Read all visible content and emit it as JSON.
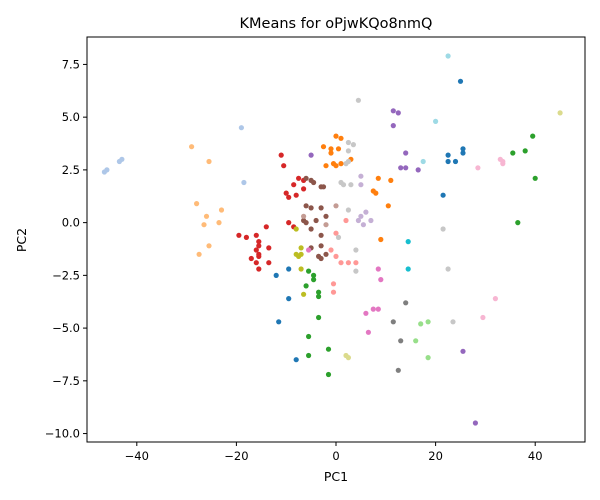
{
  "chart_data": {
    "type": "scatter",
    "title": "KMeans for oPjwKQo8nmQ",
    "xlabel": "PC1",
    "ylabel": "PC2",
    "xlim": [
      -50,
      50
    ],
    "ylim": [
      -10.4,
      8.8
    ],
    "xticks": [
      -40,
      -20,
      0,
      20,
      40
    ],
    "yticks": [
      -10.0,
      -7.5,
      -5.0,
      -2.5,
      0.0,
      2.5,
      5.0,
      7.5
    ],
    "xtick_labels": [
      "−40",
      "−20",
      "0",
      "20",
      "40"
    ],
    "ytick_labels": [
      "−10.0",
      "−7.5",
      "−5.0",
      "−2.5",
      "0.0",
      "2.5",
      "5.0",
      "7.5"
    ],
    "grid": false,
    "series": [
      {
        "color": "#1f77b4",
        "points": [
          [
            25.0,
            6.7
          ],
          [
            25.5,
            3.5
          ],
          [
            25.5,
            3.3
          ],
          [
            22.5,
            3.2
          ],
          [
            24.0,
            2.9
          ],
          [
            22.5,
            2.9
          ],
          [
            21.5,
            1.3
          ],
          [
            -12,
            -2.5
          ],
          [
            -9.5,
            -2.2
          ],
          [
            -9.5,
            -3.6
          ],
          [
            -11.5,
            -4.7
          ],
          [
            -8,
            -6.5
          ]
        ]
      },
      {
        "color": "#aec7e8",
        "points": [
          [
            -46.5,
            2.4
          ],
          [
            -46,
            2.5
          ],
          [
            -43.5,
            2.9
          ],
          [
            -43,
            3.0
          ],
          [
            -19,
            4.5
          ],
          [
            -18.5,
            1.9
          ]
        ]
      },
      {
        "color": "#ff7f0e",
        "points": [
          [
            0,
            4.1
          ],
          [
            1,
            4.0
          ],
          [
            -2.5,
            3.6
          ],
          [
            -1,
            3.5
          ],
          [
            -1,
            3.3
          ],
          [
            0.5,
            3.5
          ],
          [
            -2,
            2.7
          ],
          [
            -0.5,
            2.8
          ],
          [
            0,
            2.7
          ],
          [
            1,
            2.8
          ],
          [
            3,
            3.0
          ],
          [
            8.5,
            2.1
          ],
          [
            11,
            2.0
          ],
          [
            7.5,
            1.5
          ],
          [
            8.0,
            1.4
          ],
          [
            10.5,
            0.8
          ],
          [
            9,
            -0.8
          ]
        ]
      },
      {
        "color": "#ffbb78",
        "points": [
          [
            -29,
            3.6
          ],
          [
            -25.5,
            2.9
          ],
          [
            -28,
            0.9
          ],
          [
            -26,
            0.3
          ],
          [
            -23,
            0.6
          ],
          [
            -23.5,
            0.0
          ],
          [
            -26.5,
            -0.1
          ],
          [
            -25.5,
            -1.1
          ],
          [
            -27.5,
            -1.5
          ]
        ]
      },
      {
        "color": "#2ca02c",
        "points": [
          [
            39.5,
            4.1
          ],
          [
            38,
            3.4
          ],
          [
            35.5,
            3.3
          ],
          [
            40,
            2.1
          ],
          [
            36.5,
            0.0
          ],
          [
            -5.5,
            -2.3
          ],
          [
            -4.5,
            -2.5
          ],
          [
            -4.5,
            -2.7
          ],
          [
            -6,
            -3.0
          ],
          [
            -3.5,
            -3.3
          ],
          [
            -3.5,
            -3.5
          ],
          [
            -3.5,
            -4.5
          ],
          [
            -5.5,
            -5.4
          ],
          [
            -1.5,
            -6.0
          ],
          [
            -5.5,
            -6.3
          ],
          [
            -1.5,
            -7.2
          ]
        ]
      },
      {
        "color": "#98df8a",
        "points": [
          [
            17,
            -4.8
          ],
          [
            18.5,
            -4.7
          ],
          [
            16,
            -5.6
          ],
          [
            18.5,
            -6.4
          ]
        ]
      },
      {
        "color": "#d62728",
        "points": [
          [
            -11,
            3.2
          ],
          [
            -10.5,
            2.7
          ],
          [
            -7.5,
            2.1
          ],
          [
            -8.5,
            1.8
          ],
          [
            -6.5,
            2.0
          ],
          [
            -6.5,
            1.6
          ],
          [
            -10,
            1.4
          ],
          [
            -9.5,
            1.2
          ],
          [
            -8,
            1.3
          ],
          [
            -14,
            -0.2
          ],
          [
            -9.5,
            0.0
          ],
          [
            -8.5,
            -0.2
          ],
          [
            -19.5,
            -0.6
          ],
          [
            -18,
            -0.7
          ],
          [
            -16,
            -0.6
          ],
          [
            -15.5,
            -0.9
          ],
          [
            -15.5,
            -1.1
          ],
          [
            -16,
            -1.3
          ],
          [
            -13.5,
            -1.2
          ],
          [
            -15.5,
            -1.5
          ],
          [
            -15.5,
            -1.6
          ],
          [
            -17,
            -1.7
          ],
          [
            -16,
            -1.9
          ],
          [
            -13.5,
            -1.9
          ],
          [
            -15.5,
            -2.2
          ]
        ]
      },
      {
        "color": "#ff9896",
        "points": [
          [
            2,
            0.1
          ],
          [
            0,
            -0.5
          ],
          [
            -1,
            -1.3
          ],
          [
            0,
            -1.6
          ],
          [
            1,
            -1.9
          ],
          [
            2.5,
            -1.9
          ],
          [
            4,
            -1.9
          ],
          [
            -0.5,
            -2.9
          ],
          [
            -0.5,
            -3.3
          ]
        ]
      },
      {
        "color": "#9467bd",
        "points": [
          [
            -5,
            3.2
          ],
          [
            11.5,
            5.3
          ],
          [
            12.5,
            5.2
          ],
          [
            11.5,
            4.6
          ],
          [
            14,
            3.3
          ],
          [
            13,
            2.6
          ],
          [
            14,
            2.6
          ],
          [
            16.5,
            2.5
          ],
          [
            25.5,
            -6.1
          ],
          [
            28,
            -9.5
          ]
        ]
      },
      {
        "color": "#c5b0d5",
        "points": [
          [
            5,
            2.2
          ],
          [
            5,
            1.8
          ],
          [
            6,
            0.5
          ],
          [
            7,
            0.1
          ],
          [
            5,
            0.3
          ],
          [
            4.5,
            0.1
          ],
          [
            5.5,
            -0.1
          ]
        ]
      },
      {
        "color": "#8c564b",
        "points": [
          [
            -5,
            2.0
          ],
          [
            -6,
            2.1
          ],
          [
            -4.5,
            1.9
          ],
          [
            -3,
            1.7
          ],
          [
            -2.5,
            1.7
          ],
          [
            -6,
            0.8
          ],
          [
            -5,
            0.7
          ],
          [
            -3,
            0.7
          ],
          [
            -2,
            0.3
          ],
          [
            -6.5,
            0.1
          ],
          [
            -6,
            0.0
          ],
          [
            -4,
            0.1
          ],
          [
            -5,
            -0.3
          ],
          [
            -3,
            -0.6
          ],
          [
            -3,
            -1.1
          ],
          [
            -5,
            -1.2
          ],
          [
            -2,
            -1.5
          ],
          [
            -3.5,
            -1.6
          ],
          [
            -3,
            -1.7
          ]
        ]
      },
      {
        "color": "#c49c94",
        "points": [
          [
            -6.5,
            0.3
          ],
          [
            0,
            0.8
          ],
          [
            -2,
            -0.1
          ]
        ]
      },
      {
        "color": "#e377c2",
        "points": [
          [
            7.5,
            -4.1
          ],
          [
            8.5,
            -4.1
          ],
          [
            6,
            -4.3
          ],
          [
            6.5,
            -5.2
          ],
          [
            8.5,
            -2.2
          ],
          [
            9,
            -2.7
          ],
          [
            -5.5,
            -1.3
          ]
        ]
      },
      {
        "color": "#f7b6d2",
        "points": [
          [
            33,
            3.0
          ],
          [
            33.5,
            2.9
          ],
          [
            33.5,
            2.8
          ],
          [
            28.5,
            2.6
          ],
          [
            32,
            -3.6
          ],
          [
            29.5,
            -4.5
          ]
        ]
      },
      {
        "color": "#7f7f7f",
        "points": [
          [
            11.5,
            -4.7
          ],
          [
            14,
            -3.8
          ],
          [
            13,
            -5.6
          ],
          [
            12.5,
            -7.0
          ]
        ]
      },
      {
        "color": "#c7c7c7",
        "points": [
          [
            4.5,
            5.8
          ],
          [
            2.5,
            3.8
          ],
          [
            3.5,
            3.7
          ],
          [
            2.5,
            3.4
          ],
          [
            1,
            1.9
          ],
          [
            1.5,
            1.8
          ],
          [
            3,
            1.8
          ],
          [
            2.5,
            2.9
          ],
          [
            2,
            2.8
          ],
          [
            0.5,
            -0.7
          ],
          [
            2.5,
            0.6
          ],
          [
            4,
            -1.3
          ],
          [
            4,
            -2.3
          ],
          [
            21.5,
            -0.3
          ],
          [
            22.5,
            -2.2
          ],
          [
            23.5,
            -4.7
          ]
        ]
      },
      {
        "color": "#bcbd22",
        "points": [
          [
            -8,
            -0.3
          ],
          [
            -7,
            -1.2
          ],
          [
            -8,
            -1.5
          ],
          [
            -7.5,
            -1.6
          ],
          [
            -7,
            -1.5
          ],
          [
            -7,
            -2.2
          ],
          [
            -6.5,
            -3.4
          ]
        ]
      },
      {
        "color": "#dbdb8d",
        "points": [
          [
            45,
            5.2
          ],
          [
            2,
            -6.3
          ],
          [
            2.5,
            -6.4
          ]
        ]
      },
      {
        "color": "#17becf",
        "points": [
          [
            14.5,
            -0.9
          ],
          [
            14.5,
            -2.2
          ]
        ]
      },
      {
        "color": "#9edae5",
        "points": [
          [
            22.5,
            7.9
          ],
          [
            20,
            4.8
          ],
          [
            17.5,
            2.9
          ]
        ]
      }
    ]
  }
}
